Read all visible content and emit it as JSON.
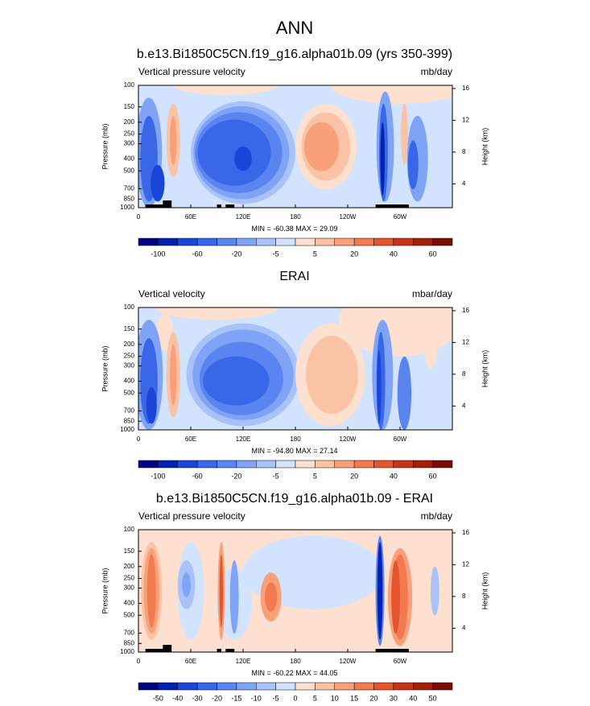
{
  "figure_title": "ANN",
  "chart_data": [
    {
      "type": "contour",
      "title": "b.e13.Bi1850C5CN.f19_g16.alpha01b.09 (yrs 350-399)",
      "left_label": "Vertical pressure velocity",
      "right_label": "mb/day",
      "ylabel": "Pressure (mb)",
      "y2label": "Height (km)",
      "xlim": [
        0,
        360
      ],
      "xticks": [
        0,
        {
          "value": 60,
          "label": "60E"
        },
        {
          "value": 120,
          "label": "120E"
        },
        180,
        {
          "value": 240,
          "label": "120W"
        },
        {
          "value": 300,
          "label": "60W"
        }
      ],
      "ylim": [
        1000,
        100
      ],
      "log_y": true,
      "yticks": [
        100,
        150,
        200,
        250,
        300,
        400,
        500,
        700,
        850,
        1000
      ],
      "y2lim": [
        1,
        16.4
      ],
      "y2ticks": [
        4,
        8,
        12,
        16
      ],
      "min_label": "MIN =",
      "min": {
        "value": -60.38,
        "label": "-60.38"
      },
      "max_label": "MAX =",
      "max": {
        "value": 29.09,
        "label": "29.09"
      },
      "colorbar": {
        "colors": [
          "#000080",
          "#0022b0",
          "#1a45d6",
          "#3a66e8",
          "#5a85f0",
          "#7fa3f5",
          "#a9c3fa",
          "#d2e3fd",
          "#fde0cf",
          "#fbc3a5",
          "#f7a07a",
          "#f27a50",
          "#e4552f",
          "#c6341a",
          "#a0200f",
          "#7a0c06"
        ],
        "labels": [
          -100,
          -60,
          -20,
          -5,
          5,
          20,
          40,
          60
        ]
      }
    },
    {
      "type": "contour",
      "title": "ERAI",
      "left_label": "Vertical velocity",
      "right_label": "mbar/day",
      "ylabel": "Pressure (mb)",
      "y2label": "Height (km)",
      "xlim": [
        0,
        360
      ],
      "xticks": [
        0,
        {
          "value": 60,
          "label": "60E"
        },
        {
          "value": 120,
          "label": "120E"
        },
        180,
        {
          "value": 240,
          "label": "120W"
        },
        {
          "value": 300,
          "label": "60W"
        }
      ],
      "ylim": [
        1000,
        100
      ],
      "log_y": true,
      "yticks": [
        100,
        150,
        200,
        250,
        300,
        400,
        500,
        700,
        850,
        1000
      ],
      "y2lim": [
        1,
        16.4
      ],
      "y2ticks": [
        4,
        8,
        12,
        16
      ],
      "min_label": "MIN =",
      "min": {
        "value": -94.8,
        "label": "-94.80"
      },
      "max_label": "MAX =",
      "max": {
        "value": 27.14,
        "label": "27.14"
      },
      "colorbar": {
        "colors": [
          "#000080",
          "#0022b0",
          "#1a45d6",
          "#3a66e8",
          "#5a85f0",
          "#7fa3f5",
          "#a9c3fa",
          "#d2e3fd",
          "#fde0cf",
          "#fbc3a5",
          "#f7a07a",
          "#f27a50",
          "#e4552f",
          "#c6341a",
          "#a0200f",
          "#7a0c06"
        ],
        "labels": [
          -100,
          -60,
          -20,
          -5,
          5,
          20,
          40,
          60
        ]
      }
    },
    {
      "type": "contour",
      "title": "b.e13.Bi1850C5CN.f19_g16.alpha01b.09 - ERAI",
      "left_label": "Vertical pressure velocity",
      "right_label": "mb/day",
      "ylabel": "Pressure (mb)",
      "y2label": "Height (km)",
      "xlim": [
        0,
        360
      ],
      "xticks": [
        0,
        {
          "value": 60,
          "label": "60E"
        },
        {
          "value": 120,
          "label": "120E"
        },
        180,
        {
          "value": 240,
          "label": "120W"
        },
        {
          "value": 300,
          "label": "60W"
        }
      ],
      "ylim": [
        1000,
        100
      ],
      "log_y": true,
      "yticks": [
        100,
        150,
        200,
        250,
        300,
        400,
        500,
        700,
        850,
        1000
      ],
      "y2lim": [
        1,
        16.4
      ],
      "y2ticks": [
        4,
        8,
        12,
        16
      ],
      "min_label": "MIN =",
      "min": {
        "value": -60.22,
        "label": "-60.22"
      },
      "max_label": "MAX =",
      "max": {
        "value": 44.05,
        "label": "44.05"
      },
      "colorbar": {
        "colors": [
          "#000080",
          "#0022b0",
          "#1a45d6",
          "#3a66e8",
          "#5a85f0",
          "#7fa3f5",
          "#a9c3fa",
          "#d2e3fd",
          "#fde0cf",
          "#fbc3a5",
          "#f7a07a",
          "#f27a50",
          "#e4552f",
          "#c6341a",
          "#a0200f",
          "#7a0c06"
        ],
        "labels": [
          -50,
          -40,
          -30,
          -20,
          -15,
          -10,
          -5,
          0,
          5,
          10,
          15,
          20,
          30,
          40,
          50
        ]
      }
    }
  ]
}
